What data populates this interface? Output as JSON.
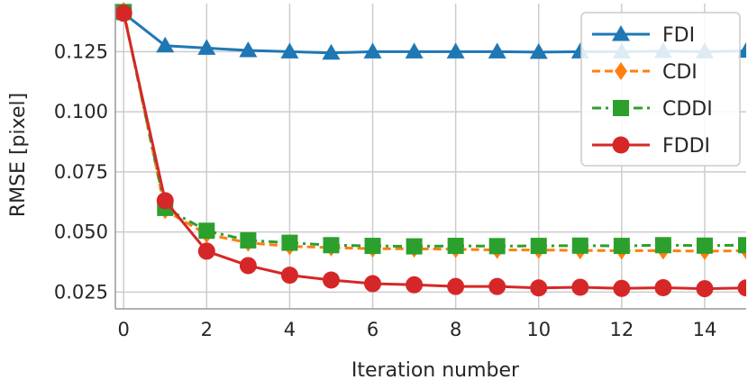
{
  "chart_data": {
    "type": "line",
    "title": "",
    "xlabel": "Iteration number",
    "ylabel": "RMSE [pixel]",
    "xlim": [
      -0.2,
      15.0
    ],
    "ylim": [
      0.018,
      0.145
    ],
    "xticks": [
      0,
      2,
      4,
      6,
      8,
      10,
      12,
      14
    ],
    "xtick_labels": [
      "0",
      "2",
      "4",
      "6",
      "8",
      "10",
      "12",
      "14"
    ],
    "yticks": [
      0.025,
      0.05,
      0.075,
      0.1,
      0.125
    ],
    "ytick_labels": [
      "0.025",
      "0.050",
      "0.075",
      "0.100",
      "0.125"
    ],
    "grid": true,
    "legend_position": "top-right",
    "x": [
      0,
      1,
      2,
      3,
      4,
      5,
      6,
      7,
      8,
      9,
      10,
      11,
      12,
      13,
      14,
      15
    ],
    "series": [
      {
        "name": "FDI",
        "color": "#1f77b4",
        "marker": "triangle",
        "linestyle": "solid",
        "values": [
          0.141,
          0.1275,
          0.1265,
          0.1255,
          0.125,
          0.1245,
          0.125,
          0.125,
          0.125,
          0.125,
          0.1248,
          0.125,
          0.125,
          0.1252,
          0.125,
          0.1253
        ]
      },
      {
        "name": "CDI",
        "color": "#ff7f0e",
        "marker": "diamond",
        "linestyle": "dashed",
        "values": [
          0.142,
          0.059,
          0.049,
          0.0455,
          0.044,
          0.0435,
          0.043,
          0.043,
          0.0428,
          0.0425,
          0.0425,
          0.0423,
          0.0422,
          0.0422,
          0.042,
          0.0422
        ]
      },
      {
        "name": "CDDI",
        "color": "#2ca02c",
        "marker": "square",
        "linestyle": "dashdot",
        "values": [
          0.1415,
          0.06,
          0.0505,
          0.0465,
          0.0455,
          0.0445,
          0.0442,
          0.044,
          0.0442,
          0.0441,
          0.0442,
          0.0443,
          0.0442,
          0.0445,
          0.0443,
          0.0445
        ]
      },
      {
        "name": "FDDI",
        "color": "#d62728",
        "marker": "circle",
        "linestyle": "solid",
        "values": [
          0.141,
          0.063,
          0.042,
          0.036,
          0.032,
          0.03,
          0.0285,
          0.028,
          0.0273,
          0.0273,
          0.0267,
          0.027,
          0.0265,
          0.0268,
          0.0264,
          0.0267
        ]
      }
    ]
  }
}
